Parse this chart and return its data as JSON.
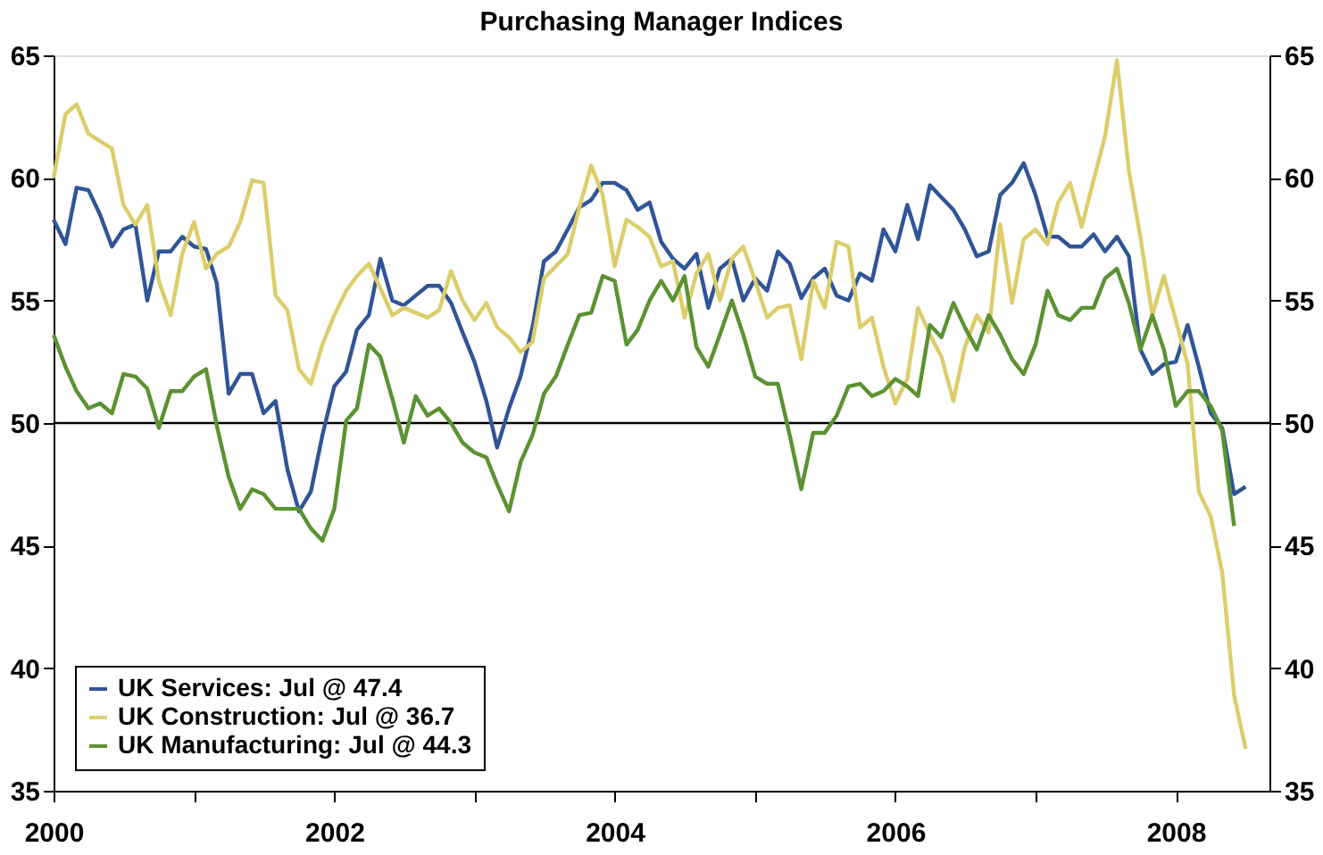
{
  "chart_data": {
    "type": "line",
    "title": "Purchasing Manager Indices",
    "x": [
      "2000-01",
      "2000-02",
      "2000-03",
      "2000-04",
      "2000-05",
      "2000-06",
      "2000-07",
      "2000-08",
      "2000-09",
      "2000-10",
      "2000-11",
      "2000-12",
      "2001-01",
      "2001-02",
      "2001-03",
      "2001-04",
      "2001-05",
      "2001-06",
      "2001-07",
      "2001-08",
      "2001-09",
      "2001-10",
      "2001-11",
      "2001-12",
      "2002-01",
      "2002-02",
      "2002-03",
      "2002-04",
      "2002-05",
      "2002-06",
      "2002-07",
      "2002-08",
      "2002-09",
      "2002-10",
      "2002-11",
      "2002-12",
      "2003-01",
      "2003-02",
      "2003-03",
      "2003-04",
      "2003-05",
      "2003-06",
      "2003-07",
      "2003-08",
      "2003-09",
      "2003-10",
      "2003-11",
      "2003-12",
      "2004-01",
      "2004-02",
      "2004-03",
      "2004-04",
      "2004-05",
      "2004-06",
      "2004-07",
      "2004-08",
      "2004-09",
      "2004-10",
      "2004-11",
      "2004-12",
      "2005-01",
      "2005-02",
      "2005-03",
      "2005-04",
      "2005-05",
      "2005-06",
      "2005-07",
      "2005-08",
      "2005-09",
      "2005-10",
      "2005-11",
      "2005-12",
      "2006-01",
      "2006-02",
      "2006-03",
      "2006-04",
      "2006-05",
      "2006-06",
      "2006-07",
      "2006-08",
      "2006-09",
      "2006-10",
      "2006-11",
      "2006-12",
      "2007-01",
      "2007-02",
      "2007-03",
      "2007-04",
      "2007-05",
      "2007-06",
      "2007-07",
      "2007-08",
      "2007-09",
      "2007-10",
      "2007-11",
      "2007-12",
      "2008-01",
      "2008-02",
      "2008-03",
      "2008-04",
      "2008-05",
      "2008-06",
      "2008-07"
    ],
    "series": [
      {
        "name": "UK Services: Jul @ 47.4",
        "color": "#2f5597",
        "values": [
          58.3,
          57.3,
          59.6,
          59.5,
          58.5,
          57.2,
          57.9,
          58.1,
          55.0,
          57.0,
          57.0,
          57.6,
          57.2,
          57.1,
          55.7,
          51.2,
          52.0,
          52.0,
          50.4,
          50.9,
          48.1,
          46.4,
          47.2,
          49.5,
          51.5,
          52.1,
          53.8,
          54.4,
          56.7,
          55.0,
          54.8,
          55.2,
          55.6,
          55.6,
          54.9,
          53.7,
          52.5,
          50.9,
          49.0,
          50.6,
          51.9,
          53.9,
          56.6,
          57.0,
          57.9,
          58.8,
          59.1,
          59.8,
          59.8,
          59.5,
          58.7,
          59.0,
          57.4,
          56.7,
          56.3,
          56.9,
          54.7,
          56.3,
          56.7,
          55.0,
          55.9,
          55.4,
          57.0,
          56.5,
          55.1,
          55.9,
          56.3,
          55.2,
          55.0,
          56.1,
          55.8,
          57.9,
          57.0,
          58.9,
          57.5,
          59.7,
          59.2,
          58.7,
          57.9,
          56.8,
          57.0,
          59.3,
          59.8,
          60.6,
          59.3,
          57.6,
          57.6,
          57.2,
          57.2,
          57.7,
          57.0,
          57.6,
          56.8,
          53.0,
          52.0,
          52.4,
          52.5,
          54.0,
          52.3,
          50.4,
          49.8,
          47.1,
          47.4
        ]
      },
      {
        "name": "UK Construction: Jul @ 36.7",
        "color": "#dccd6a",
        "values": [
          60.0,
          62.6,
          63.0,
          61.8,
          61.5,
          61.2,
          58.9,
          58.1,
          58.9,
          55.8,
          54.4,
          56.9,
          58.2,
          56.3,
          56.9,
          57.2,
          58.2,
          59.9,
          59.8,
          55.2,
          54.6,
          52.2,
          51.6,
          53.2,
          54.4,
          55.4,
          56.0,
          56.5,
          55.5,
          54.4,
          54.7,
          54.5,
          54.3,
          54.6,
          56.2,
          55.0,
          54.2,
          54.9,
          53.9,
          53.5,
          52.9,
          53.3,
          55.9,
          56.4,
          56.9,
          58.8,
          60.5,
          59.3,
          56.4,
          58.3,
          58.0,
          57.6,
          56.4,
          56.6,
          54.3,
          56.1,
          56.9,
          55.0,
          56.7,
          57.2,
          55.8,
          54.3,
          54.7,
          54.8,
          52.6,
          55.8,
          54.7,
          57.4,
          57.2,
          53.9,
          54.3,
          52.3,
          50.8,
          51.8,
          54.7,
          53.6,
          52.7,
          50.9,
          53.1,
          54.4,
          53.7,
          58.1,
          54.9,
          57.5,
          57.9,
          57.3,
          59.0,
          59.8,
          58.0,
          59.9,
          61.7,
          64.8,
          60.3,
          57.6,
          54.4,
          56.0,
          54.2,
          52.4,
          47.2,
          46.2,
          43.9,
          38.9,
          36.7
        ]
      },
      {
        "name": "UK Manufacturing: Jul @ 44.3",
        "color": "#5b9232",
        "values": [
          53.6,
          52.3,
          51.3,
          50.6,
          50.8,
          50.4,
          52.0,
          51.9,
          51.4,
          49.8,
          51.3,
          51.3,
          51.9,
          52.2,
          49.9,
          47.8,
          46.5,
          47.3,
          47.1,
          46.5,
          46.5,
          46.5,
          45.7,
          45.2,
          46.5,
          50.1,
          50.6,
          53.2,
          52.7,
          51.0,
          49.2,
          51.1,
          50.3,
          50.6,
          50.0,
          49.2,
          48.8,
          48.6,
          47.5,
          46.4,
          48.4,
          49.5,
          51.2,
          51.9,
          53.2,
          54.4,
          54.5,
          56.0,
          55.8,
          53.2,
          53.8,
          55.0,
          55.8,
          55.0,
          56.0,
          53.1,
          52.3,
          53.6,
          55.0,
          53.6,
          51.9,
          51.6,
          51.6,
          49.5,
          47.3,
          49.6,
          49.6,
          50.3,
          51.5,
          51.6,
          51.1,
          51.3,
          51.8,
          51.5,
          51.1,
          54.0,
          53.5,
          54.9,
          53.9,
          53.0,
          54.4,
          53.6,
          52.6,
          52.0,
          53.2,
          55.4,
          54.4,
          54.2,
          54.7,
          54.7,
          55.9,
          56.3,
          54.9,
          53.0,
          54.4,
          53.0,
          50.7,
          51.3,
          51.3,
          50.7,
          49.7,
          45.8,
          null
        ]
      }
    ],
    "xlim": [
      "2000-01",
      "2008-09"
    ],
    "xticks": [
      "2000",
      {
        "value": "2001",
        "label": null
      },
      "2002",
      {
        "value": "2003",
        "label": null
      },
      "2004",
      {
        "value": "2005",
        "label": null
      },
      "2006",
      {
        "value": "2007",
        "label": null
      },
      "2008"
    ],
    "ylim": [
      35,
      65
    ],
    "yticks": [
      35,
      40,
      45,
      50,
      55,
      60,
      65
    ],
    "y2lim": [
      35,
      65
    ],
    "y2ticks": [
      35,
      40,
      45,
      50,
      55,
      60,
      65
    ],
    "ref_lines": [
      {
        "axis": "y",
        "value": 50,
        "color": "#000000"
      }
    ],
    "grid": false,
    "legend": "bottom left",
    "line_style": "solid",
    "marker": "none"
  }
}
